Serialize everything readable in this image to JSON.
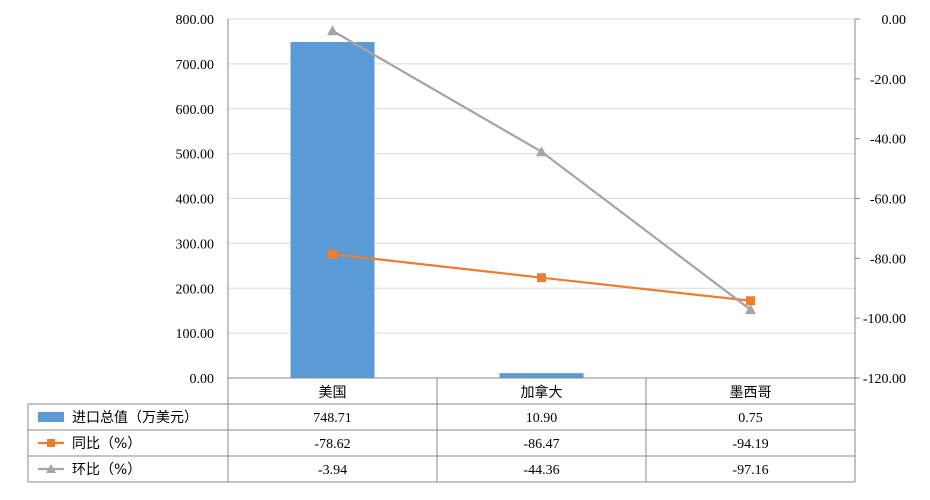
{
  "chart_data": {
    "type": "bar",
    "categories": [
      "美国",
      "加拿大",
      "墨西哥"
    ],
    "series": [
      {
        "name": "进口总值（万美元）",
        "type": "bar",
        "axis": "left",
        "values": [
          748.71,
          10.9,
          0.75
        ],
        "labels": [
          "748.71",
          "10.90",
          "0.75"
        ],
        "color": "#5B9BD5"
      },
      {
        "name": "同比（%）",
        "type": "line",
        "axis": "right",
        "marker": "square",
        "values": [
          -78.62,
          -86.47,
          -94.19
        ],
        "labels": [
          "-78.62",
          "-86.47",
          "-94.19"
        ],
        "color": "#ED7D31"
      },
      {
        "name": "环比（%）",
        "type": "line",
        "axis": "right",
        "marker": "triangle",
        "values": [
          -3.94,
          -44.36,
          -97.16
        ],
        "labels": [
          "-3.94",
          "-44.36",
          "-97.16"
        ],
        "color": "#A5A5A5"
      }
    ],
    "y_left": {
      "min": 0,
      "max": 800,
      "ticks": [
        "0.00",
        "100.00",
        "200.00",
        "300.00",
        "400.00",
        "500.00",
        "600.00",
        "700.00",
        "800.00"
      ]
    },
    "y_right": {
      "min": -120,
      "max": 0,
      "ticks": [
        "-120.00",
        "-100.00",
        "-80.00",
        "-60.00",
        "-40.00",
        "-20.00",
        "0.00"
      ]
    },
    "grid": true,
    "legend": "data-table-below"
  }
}
